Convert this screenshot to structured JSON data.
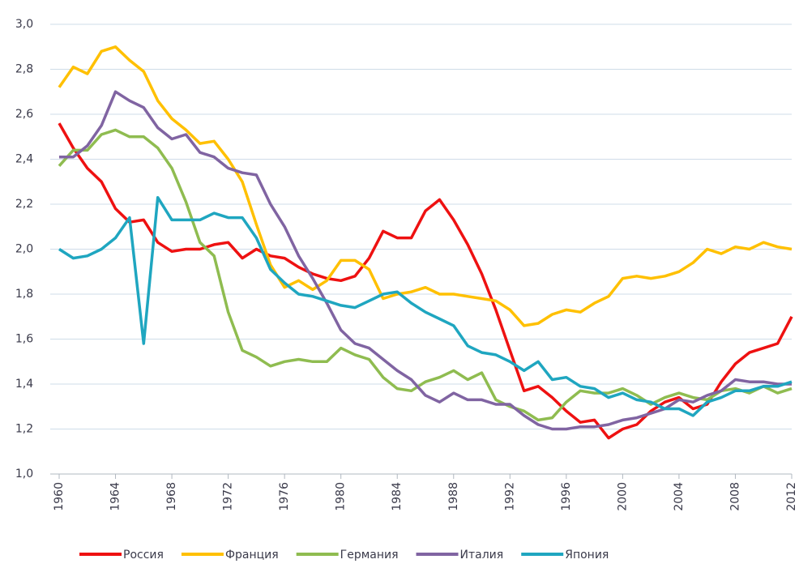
{
  "chart_data": {
    "type": "line",
    "x": [
      1960,
      1961,
      1962,
      1963,
      1964,
      1965,
      1966,
      1967,
      1968,
      1969,
      1970,
      1971,
      1972,
      1973,
      1974,
      1975,
      1976,
      1977,
      1978,
      1979,
      1980,
      1981,
      1982,
      1983,
      1984,
      1985,
      1986,
      1987,
      1988,
      1989,
      1990,
      1991,
      1992,
      1993,
      1994,
      1995,
      1996,
      1997,
      1998,
      1999,
      2000,
      2001,
      2002,
      2003,
      2004,
      2005,
      2006,
      2007,
      2008,
      2009,
      2010,
      2011,
      2012
    ],
    "xlim": [
      1960,
      2012
    ],
    "xticks": [
      1960,
      1964,
      1968,
      1972,
      1976,
      1980,
      1984,
      1988,
      1992,
      1996,
      2000,
      2004,
      2008,
      2012
    ],
    "ylim": [
      1.0,
      3.0
    ],
    "yticks": [
      {
        "value": 1.0,
        "label": "1,0"
      },
      {
        "value": 1.2,
        "label": "1,2"
      },
      {
        "value": 1.4,
        "label": "1,4"
      },
      {
        "value": 1.6,
        "label": "1,6"
      },
      {
        "value": 1.8,
        "label": "1,8"
      },
      {
        "value": 2.0,
        "label": "2,0"
      },
      {
        "value": 2.2,
        "label": "2,2"
      },
      {
        "value": 2.4,
        "label": "2,4"
      },
      {
        "value": 2.6,
        "label": "2,6"
      },
      {
        "value": 2.8,
        "label": "2,8"
      },
      {
        "value": 3.0,
        "label": "3,0"
      }
    ],
    "grid": true,
    "legend": "bottom",
    "series": [
      {
        "name": "Россия",
        "color": "#ee1111",
        "values": [
          2.56,
          2.45,
          2.36,
          2.3,
          2.18,
          2.12,
          2.13,
          2.03,
          1.99,
          2.0,
          2.0,
          2.02,
          2.03,
          1.96,
          2.0,
          1.97,
          1.96,
          1.92,
          1.89,
          1.87,
          1.86,
          1.88,
          1.96,
          2.08,
          2.05,
          2.05,
          2.17,
          2.22,
          2.13,
          2.02,
          1.89,
          1.73,
          1.55,
          1.37,
          1.39,
          1.34,
          1.28,
          1.23,
          1.24,
          1.16,
          1.2,
          1.22,
          1.28,
          1.32,
          1.34,
          1.29,
          1.31,
          1.41,
          1.49,
          1.54,
          1.56,
          1.58,
          1.7
        ]
      },
      {
        "name": "Франция",
        "color": "#ffc000",
        "values": [
          2.72,
          2.81,
          2.78,
          2.88,
          2.9,
          2.84,
          2.79,
          2.66,
          2.58,
          2.53,
          2.47,
          2.48,
          2.4,
          2.3,
          2.11,
          1.93,
          1.83,
          1.86,
          1.82,
          1.86,
          1.95,
          1.95,
          1.91,
          1.78,
          1.8,
          1.81,
          1.83,
          1.8,
          1.8,
          1.79,
          1.78,
          1.77,
          1.73,
          1.66,
          1.67,
          1.71,
          1.73,
          1.72,
          1.76,
          1.79,
          1.87,
          1.88,
          1.87,
          1.88,
          1.9,
          1.94,
          2.0,
          1.98,
          2.01,
          2.0,
          2.03,
          2.01,
          2.0
        ]
      },
      {
        "name": "Германия",
        "color": "#8fbc50",
        "values": [
          2.37,
          2.44,
          2.44,
          2.51,
          2.53,
          2.5,
          2.5,
          2.45,
          2.36,
          2.21,
          2.03,
          1.97,
          1.72,
          1.55,
          1.52,
          1.48,
          1.5,
          1.51,
          1.5,
          1.5,
          1.56,
          1.53,
          1.51,
          1.43,
          1.38,
          1.37,
          1.41,
          1.43,
          1.46,
          1.42,
          1.45,
          1.33,
          1.3,
          1.28,
          1.24,
          1.25,
          1.32,
          1.37,
          1.36,
          1.36,
          1.38,
          1.35,
          1.31,
          1.34,
          1.36,
          1.34,
          1.33,
          1.37,
          1.38,
          1.36,
          1.39,
          1.36,
          1.38
        ]
      },
      {
        "name": "Италия",
        "color": "#8064a2",
        "values": [
          2.41,
          2.41,
          2.46,
          2.55,
          2.7,
          2.66,
          2.63,
          2.54,
          2.49,
          2.51,
          2.43,
          2.41,
          2.36,
          2.34,
          2.33,
          2.2,
          2.1,
          1.97,
          1.87,
          1.76,
          1.64,
          1.58,
          1.56,
          1.51,
          1.46,
          1.42,
          1.35,
          1.32,
          1.36,
          1.33,
          1.33,
          1.31,
          1.31,
          1.26,
          1.22,
          1.2,
          1.2,
          1.21,
          1.21,
          1.22,
          1.24,
          1.25,
          1.27,
          1.29,
          1.33,
          1.32,
          1.35,
          1.37,
          1.42,
          1.41,
          1.41,
          1.4,
          1.4
        ]
      },
      {
        "name": "Япония",
        "color": "#1fa6c0",
        "values": [
          2.0,
          1.96,
          1.97,
          2.0,
          2.05,
          2.14,
          1.58,
          2.23,
          2.13,
          2.13,
          2.13,
          2.16,
          2.14,
          2.14,
          2.05,
          1.91,
          1.85,
          1.8,
          1.79,
          1.77,
          1.75,
          1.74,
          1.77,
          1.8,
          1.81,
          1.76,
          1.72,
          1.69,
          1.66,
          1.57,
          1.54,
          1.53,
          1.5,
          1.46,
          1.5,
          1.42,
          1.43,
          1.39,
          1.38,
          1.34,
          1.36,
          1.33,
          1.32,
          1.29,
          1.29,
          1.26,
          1.32,
          1.34,
          1.37,
          1.37,
          1.39,
          1.39,
          1.41
        ]
      }
    ]
  }
}
